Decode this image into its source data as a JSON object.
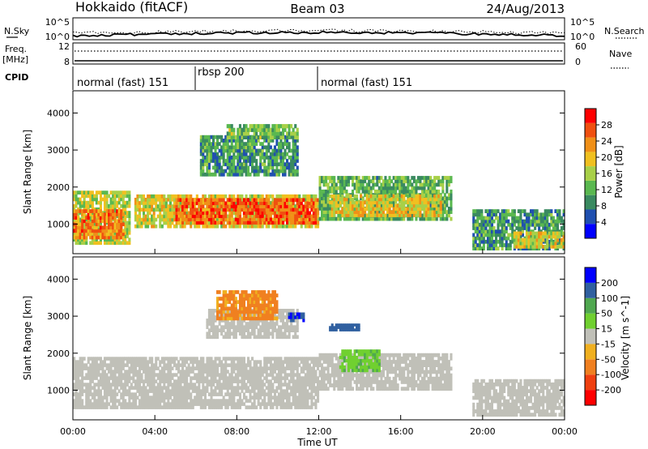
{
  "header": {
    "title_left": "Hokkaido (fitACF)",
    "title_center": "Beam 03",
    "title_right": "24/Aug/2013"
  },
  "strips": {
    "nsky_label": "N.Sky",
    "nsearch_label": "N.Search",
    "noise_ticks": [
      "10^5",
      "10^0"
    ],
    "freq_label": "Freq.",
    "freq_unit": "[MHz]",
    "freq_ticks": [
      "12",
      "8"
    ],
    "nave_label": "Nave",
    "nave_ticks": [
      "60",
      "0"
    ],
    "cpid_label": "CPID",
    "cpid_segments": [
      {
        "label": "normal (fast) 151",
        "start_h": 0,
        "end_h": 6
      },
      {
        "label": "rbsp 200",
        "start_h": 6,
        "end_h": 12
      },
      {
        "label": "normal (fast) 151",
        "start_h": 12,
        "end_h": 24
      }
    ]
  },
  "colors": {
    "power_scale": [
      "#0000ff",
      "#2050b0",
      "#3a8a60",
      "#5ab850",
      "#a8d048",
      "#f0c020",
      "#f09018",
      "#f05010",
      "#ff0000"
    ],
    "velocity_scale": [
      "#ff0000",
      "#f04010",
      "#f08020",
      "#f0b020",
      "#c0c0b8",
      "#70d030",
      "#50a850",
      "#3060a0",
      "#0000ff"
    ]
  },
  "chart_data": [
    {
      "type": "heatmap",
      "panel": "power",
      "ylabel": "Slant Range [km]",
      "y_ticks": [
        1000,
        2000,
        3000,
        4000
      ],
      "ylim": [
        200,
        4600
      ],
      "xlim": [
        0,
        24
      ],
      "colorbar_label": "Power [dB]",
      "colorbar_ticks": [
        4,
        8,
        12,
        16,
        20,
        24,
        28
      ],
      "colorbar_range": [
        0,
        32
      ],
      "regions": [
        {
          "t0": 0,
          "t1": 2.8,
          "r0": 450,
          "r1": 1900,
          "value": 16
        },
        {
          "t0": 0,
          "t1": 2.5,
          "r0": 600,
          "r1": 1400,
          "value": 24
        },
        {
          "t0": 3,
          "t1": 12,
          "r0": 900,
          "r1": 1800,
          "value": 18
        },
        {
          "t0": 5,
          "t1": 12,
          "r0": 1000,
          "r1": 1700,
          "value": 26
        },
        {
          "t0": 6.2,
          "t1": 11,
          "r0": 2300,
          "r1": 3400,
          "value": 10
        },
        {
          "t0": 7.5,
          "t1": 11,
          "r0": 3300,
          "r1": 3700,
          "value": 13
        },
        {
          "t0": 12,
          "t1": 18.5,
          "r0": 1100,
          "r1": 2300,
          "value": 12
        },
        {
          "t0": 12.5,
          "t1": 18,
          "r0": 1200,
          "r1": 1800,
          "value": 19
        },
        {
          "t0": 19.5,
          "t1": 24,
          "r0": 300,
          "r1": 1400,
          "value": 10
        },
        {
          "t0": 21.5,
          "t1": 24,
          "r0": 350,
          "r1": 800,
          "value": 18
        }
      ]
    },
    {
      "type": "heatmap",
      "panel": "velocity",
      "ylabel": "Slant Range [km]",
      "y_ticks": [
        1000,
        2000,
        3000,
        4000
      ],
      "ylim": [
        200,
        4600
      ],
      "xlim": [
        0,
        24
      ],
      "x_ticks": [
        "00:00",
        "04:00",
        "08:00",
        "12:00",
        "16:00",
        "20:00",
        "00:00"
      ],
      "xlabel": "Time UT",
      "colorbar_label": "Velocity [m s^-1]",
      "colorbar_ticks": [
        -200,
        -100,
        -50,
        -15,
        15,
        50,
        100,
        200
      ],
      "regions": [
        {
          "t0": 0,
          "t1": 12,
          "r0": 500,
          "r1": 1900,
          "value": 0
        },
        {
          "t0": 6.5,
          "t1": 11,
          "r0": 2400,
          "r1": 3200,
          "value": 0
        },
        {
          "t0": 7,
          "t1": 10,
          "r0": 2900,
          "r1": 3700,
          "value": -60
        },
        {
          "t0": 10.5,
          "t1": 11.3,
          "r0": 2850,
          "r1": 3100,
          "value": 200
        },
        {
          "t0": 12,
          "t1": 18.5,
          "r0": 1000,
          "r1": 2000,
          "value": 0
        },
        {
          "t0": 12.5,
          "t1": 14,
          "r0": 2600,
          "r1": 2800,
          "value": 180
        },
        {
          "t0": 13,
          "t1": 15,
          "r0": 1500,
          "r1": 2100,
          "value": 40
        },
        {
          "t0": 19.5,
          "t1": 24,
          "r0": 300,
          "r1": 1300,
          "value": 0
        }
      ]
    }
  ]
}
